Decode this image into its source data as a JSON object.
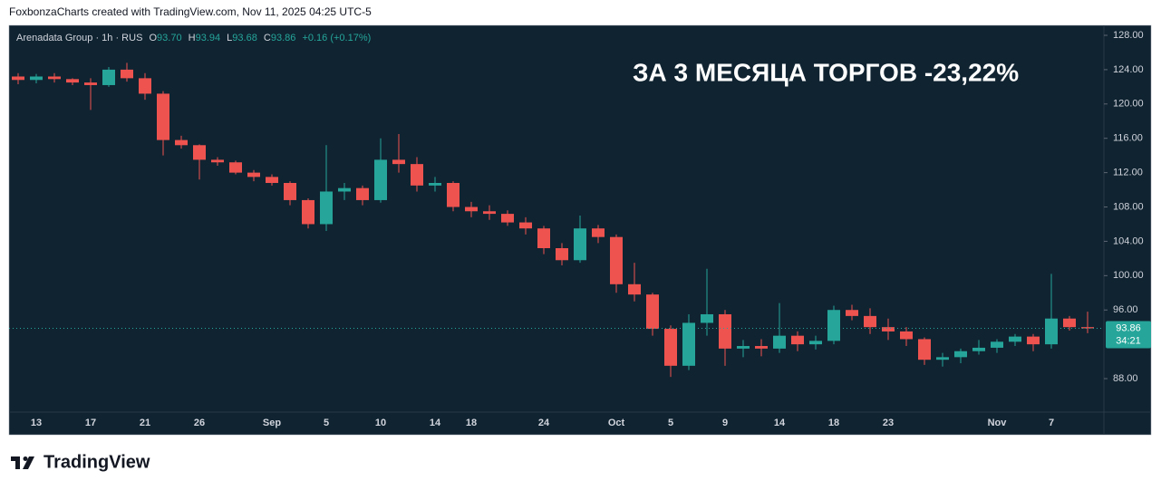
{
  "header": {
    "text": "FoxbonzaCharts created with TradingView.com, Nov 11, 2025 04:25 UTC-5"
  },
  "chart_data": {
    "type": "candlestick",
    "title": "Arenadata Group · 1h · RUS",
    "legend": {
      "o": "O",
      "open": "93.70",
      "h": "H",
      "high": "93.94",
      "l": "L",
      "low": "93.68",
      "c": "C",
      "close": "93.86",
      "change": "+0.16 (+0.17%)"
    },
    "annotation": "ЗА 3 МЕСЯЦА ТОРГОВ -23,22%",
    "categories": [
      null,
      "13",
      null,
      null,
      "17",
      null,
      null,
      "21",
      null,
      null,
      "26",
      null,
      null,
      null,
      "Sep",
      null,
      null,
      "5",
      null,
      null,
      "10",
      null,
      null,
      "14",
      null,
      "18",
      null,
      null,
      null,
      "24",
      null,
      null,
      null,
      "Oct",
      null,
      null,
      "5",
      null,
      null,
      "9",
      null,
      null,
      "14",
      null,
      null,
      "18",
      null,
      null,
      "23",
      null,
      null,
      null,
      null,
      null,
      "Nov",
      null,
      null,
      "7",
      null,
      null
    ],
    "open": [
      123.2,
      122.8,
      123.2,
      122.9,
      122.5,
      122.2,
      124.0,
      123.0,
      121.2,
      115.8,
      115.2,
      113.5,
      113.2,
      112.0,
      111.5,
      110.8,
      108.8,
      106.0,
      109.8,
      110.2,
      108.8,
      113.5,
      113.0,
      110.5,
      110.8,
      108.0,
      107.5,
      107.2,
      106.2,
      105.5,
      103.2,
      101.8,
      105.5,
      104.5,
      99.0,
      97.8,
      93.8,
      89.5,
      94.5,
      95.5,
      91.5,
      91.8,
      91.5,
      93.0,
      92.0,
      92.4,
      96.0,
      95.3,
      94.0,
      93.5,
      92.6,
      90.2,
      90.5,
      91.2,
      91.6,
      92.3,
      92.9,
      92.0,
      95.0,
      94.0
    ],
    "high": [
      123.6,
      123.5,
      123.6,
      123.0,
      123.0,
      124.3,
      124.8,
      123.6,
      121.5,
      116.3,
      115.3,
      113.8,
      113.4,
      112.3,
      111.8,
      111.0,
      109.0,
      115.2,
      110.8,
      110.5,
      116.0,
      116.5,
      113.8,
      111.5,
      111.0,
      108.6,
      108.2,
      107.6,
      106.8,
      105.8,
      103.8,
      107.0,
      105.9,
      104.8,
      101.5,
      98.0,
      94.2,
      95.5,
      100.8,
      96.0,
      92.5,
      92.6,
      96.8,
      93.5,
      93.0,
      96.5,
      96.6,
      96.2,
      95.0,
      94.0,
      92.8,
      91.0,
      91.5,
      92.5,
      92.6,
      93.2,
      93.2,
      100.2,
      95.3,
      95.8
    ],
    "low": [
      122.3,
      122.4,
      122.5,
      122.2,
      119.3,
      122.0,
      122.6,
      120.5,
      114.0,
      114.8,
      111.2,
      112.8,
      111.8,
      111.0,
      110.5,
      108.2,
      105.5,
      105.2,
      108.8,
      108.2,
      108.5,
      112.0,
      109.8,
      109.8,
      107.5,
      106.8,
      106.5,
      105.8,
      104.8,
      102.5,
      101.2,
      101.5,
      103.8,
      98.0,
      97.0,
      93.0,
      88.2,
      89.0,
      93.0,
      89.5,
      90.5,
      90.6,
      91.0,
      91.2,
      91.4,
      92.0,
      94.8,
      93.2,
      92.5,
      91.8,
      89.6,
      89.4,
      89.8,
      90.8,
      91.0,
      91.8,
      91.2,
      91.5,
      93.6,
      93.3
    ],
    "close": [
      122.8,
      123.2,
      122.9,
      122.5,
      122.2,
      124.0,
      123.0,
      121.2,
      115.8,
      115.2,
      113.5,
      113.2,
      112.0,
      111.5,
      110.8,
      108.8,
      106.0,
      109.8,
      110.2,
      108.8,
      113.5,
      113.0,
      110.5,
      110.8,
      108.0,
      107.5,
      107.2,
      106.2,
      105.5,
      103.2,
      101.8,
      105.5,
      104.5,
      99.0,
      97.8,
      93.8,
      89.5,
      94.5,
      95.5,
      91.5,
      91.8,
      91.5,
      93.0,
      92.0,
      92.4,
      96.0,
      95.3,
      94.0,
      93.5,
      92.6,
      90.2,
      90.5,
      91.2,
      91.6,
      92.3,
      92.9,
      92.0,
      95.0,
      94.0,
      93.86
    ],
    "up_color": "#26a69a",
    "down_color": "#ef5350",
    "ylim": [
      84.1,
      129.16
    ],
    "yticks": [
      {
        "value": 88,
        "label": "88.00"
      },
      {
        "value": 96,
        "label": "96.00"
      },
      {
        "value": 100,
        "label": "100.00"
      },
      {
        "value": 104,
        "label": "104.00"
      },
      {
        "value": 108,
        "label": "108.00"
      },
      {
        "value": 112,
        "label": "112.00"
      },
      {
        "value": 116,
        "label": "116.00"
      },
      {
        "value": 120,
        "label": "120.00"
      },
      {
        "value": 124,
        "label": "124.00"
      },
      {
        "value": 128,
        "label": "128.00"
      }
    ],
    "grid": false,
    "last_price": 93.86,
    "countdown": "34:21"
  },
  "footer": {
    "brand": "TradingView"
  }
}
